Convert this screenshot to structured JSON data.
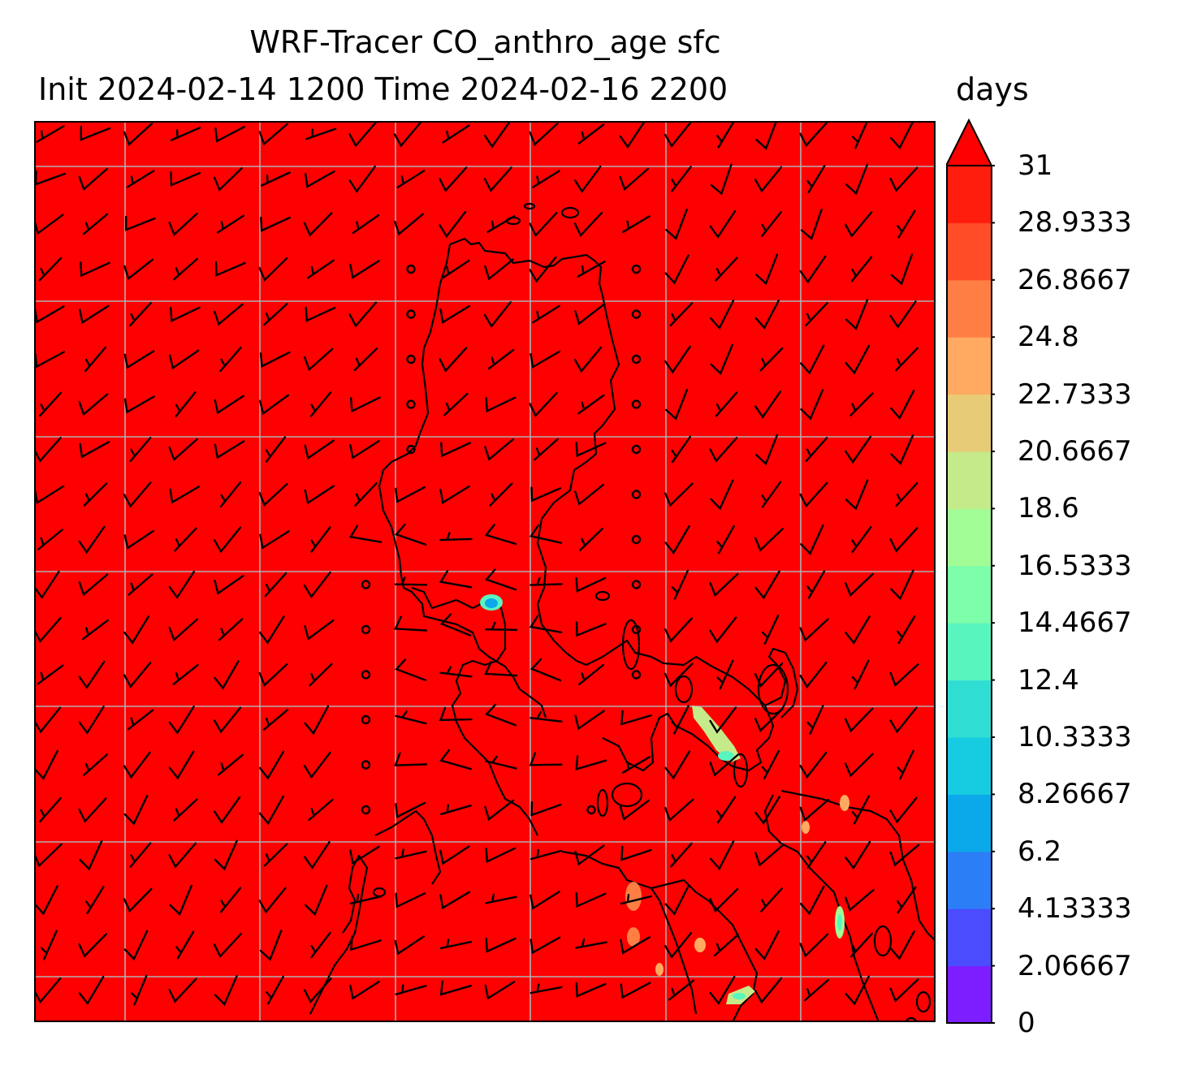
{
  "title": {
    "line1": "WRF-Tracer CO_anthro_age sfc",
    "line2": "Init 2024-02-14 1200 Time 2024-02-16 2200",
    "units": "days"
  },
  "map": {
    "field_color": "#ff0000",
    "land_outline_color": "#000000",
    "grid_color": "#b0b0b0",
    "wind_barbs": "black",
    "low_age_patches": "green-cyan"
  },
  "colorbar": {
    "min": 0,
    "max": 31,
    "extend": "max",
    "ticks": [
      "0",
      "2.06667",
      "4.13333",
      "6.2",
      "8.26667",
      "10.3333",
      "12.4",
      "14.4667",
      "16.5333",
      "18.6",
      "20.6667",
      "22.7333",
      "24.8",
      "26.8667",
      "28.9333",
      "31"
    ],
    "colors": [
      "#7c1eff",
      "#4a4cfd",
      "#2c7ef6",
      "#0ba8ea",
      "#17cbe0",
      "#30ddd2",
      "#59f5bf",
      "#7efdaa",
      "#a1fc95",
      "#c5ea8a",
      "#e8cb77",
      "#ffaa60",
      "#ff7e44",
      "#ff4e27",
      "#ff1d0e"
    ],
    "extend_color": "#ff0000"
  }
}
